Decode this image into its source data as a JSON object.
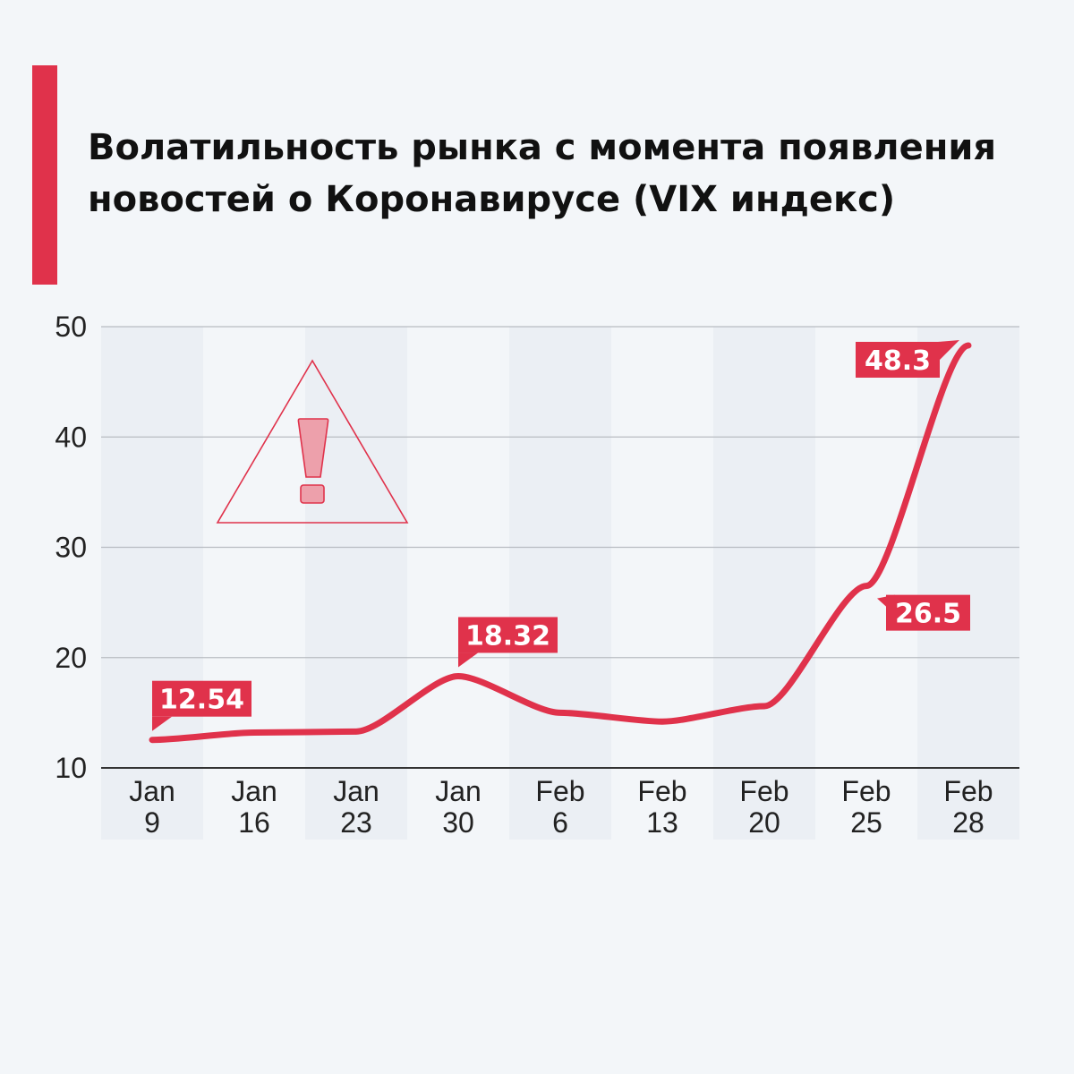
{
  "title": {
    "line1": "Волатильность рынка с момента появления",
    "line2": "новостей о Коронавирусе (VIX индекс)"
  },
  "colors": {
    "accent": "#e0324b",
    "warning_fill": "#eda0ab",
    "band_light": "#ebeff4",
    "background": "#f3f6f9",
    "grid": "#b8bcc2",
    "axis": "#333333"
  },
  "chart_data": {
    "type": "line",
    "categories": [
      [
        "Jan",
        "9"
      ],
      [
        "Jan",
        "16"
      ],
      [
        "Jan",
        "23"
      ],
      [
        "Jan",
        "30"
      ],
      [
        "Feb",
        "6"
      ],
      [
        "Feb",
        "13"
      ],
      [
        "Feb",
        "20"
      ],
      [
        "Feb",
        "25"
      ],
      [
        "Feb",
        "28"
      ]
    ],
    "values": [
      12.54,
      13.2,
      13.3,
      18.32,
      15.0,
      14.2,
      15.6,
      26.5,
      48.3
    ],
    "ylim": [
      10,
      50
    ],
    "yticks": [
      10,
      20,
      30,
      40,
      50
    ],
    "grid": true,
    "annotations": [
      {
        "index": 0,
        "text": "12.54",
        "placement": "above-right"
      },
      {
        "index": 3,
        "text": "18.32",
        "placement": "above-right"
      },
      {
        "index": 7,
        "text": "26.5",
        "placement": "below-right"
      },
      {
        "index": 8,
        "text": "48.3",
        "placement": "left"
      }
    ],
    "decoration": "warning-triangle"
  }
}
